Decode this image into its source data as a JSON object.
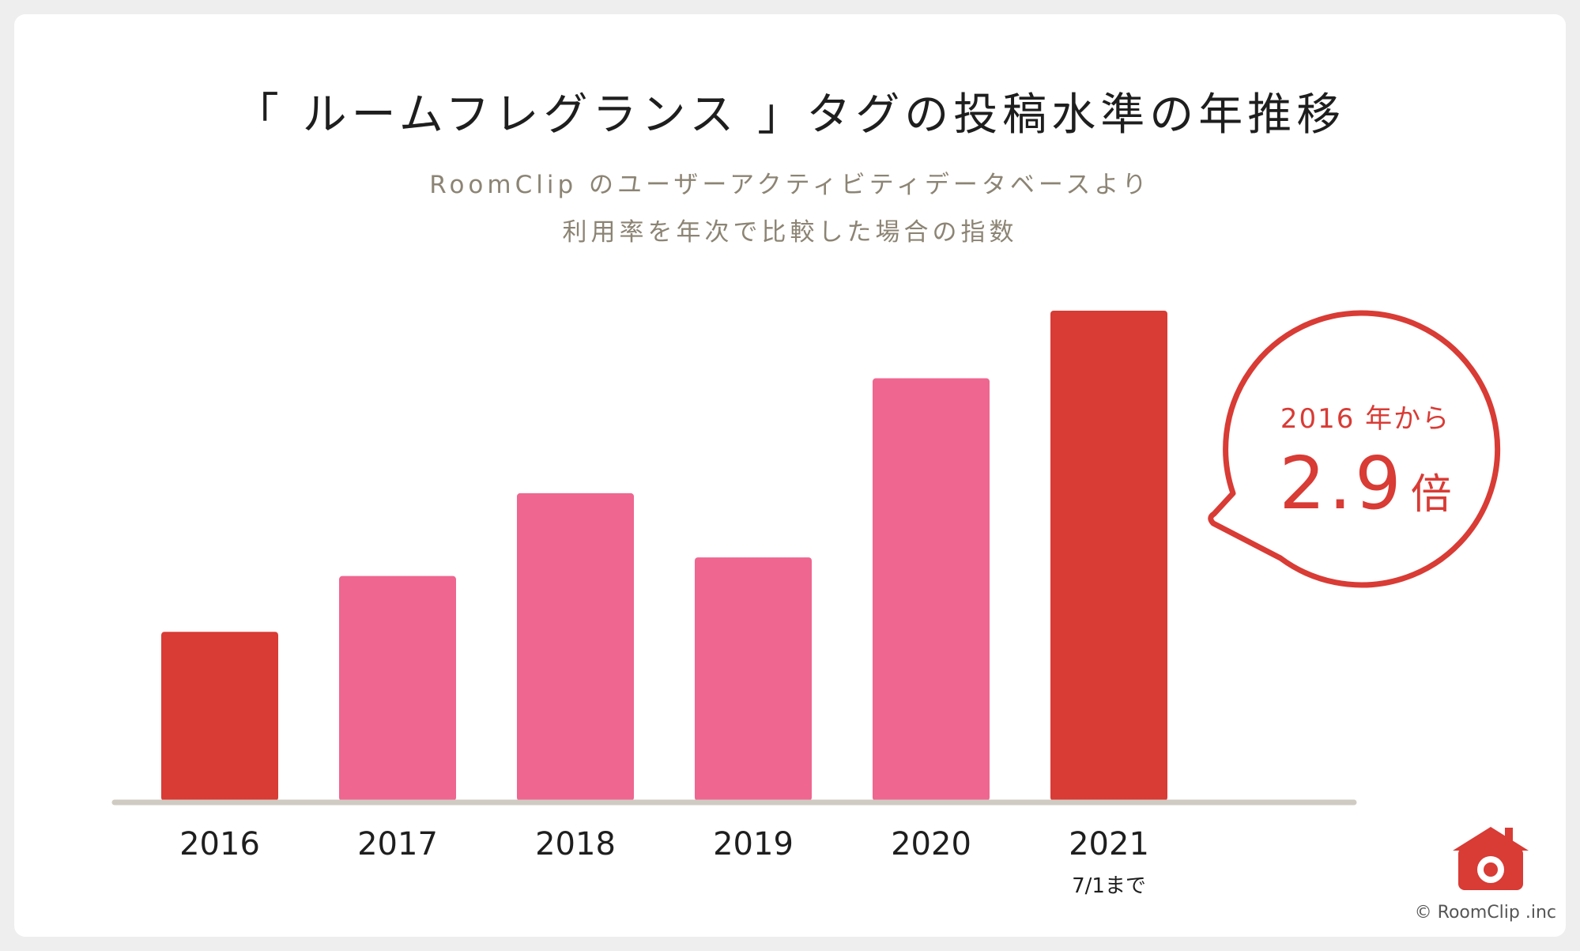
{
  "chart_data": {
    "type": "bar",
    "title": "「 ルームフレグランス 」タグの投稿水準の年推移",
    "subtitle_lines": [
      "RoomClip のユーザーアクティビティデータベースより",
      "利用率を年次で比較した場合の指数"
    ],
    "categories": [
      "2016",
      "2017",
      "2018",
      "2019",
      "2020",
      "2021"
    ],
    "category_sublabels": [
      "",
      "",
      "",
      "",
      "",
      "7/1まで"
    ],
    "values": [
      1.0,
      1.33,
      1.82,
      1.44,
      2.5,
      2.9
    ],
    "ylim": [
      0,
      3.2
    ],
    "grid": false,
    "colors": {
      "highlight": "#d93b35",
      "normal": "#ef6690",
      "axis": "#cfcbc3"
    },
    "highlight_categories": [
      "2016",
      "2021"
    ],
    "callout": {
      "line1": "2016 年から",
      "value": "2.9",
      "unit": "倍"
    }
  },
  "footer": {
    "copyright": "© RoomClip .inc",
    "logo_icon": "house-camera-icon"
  }
}
